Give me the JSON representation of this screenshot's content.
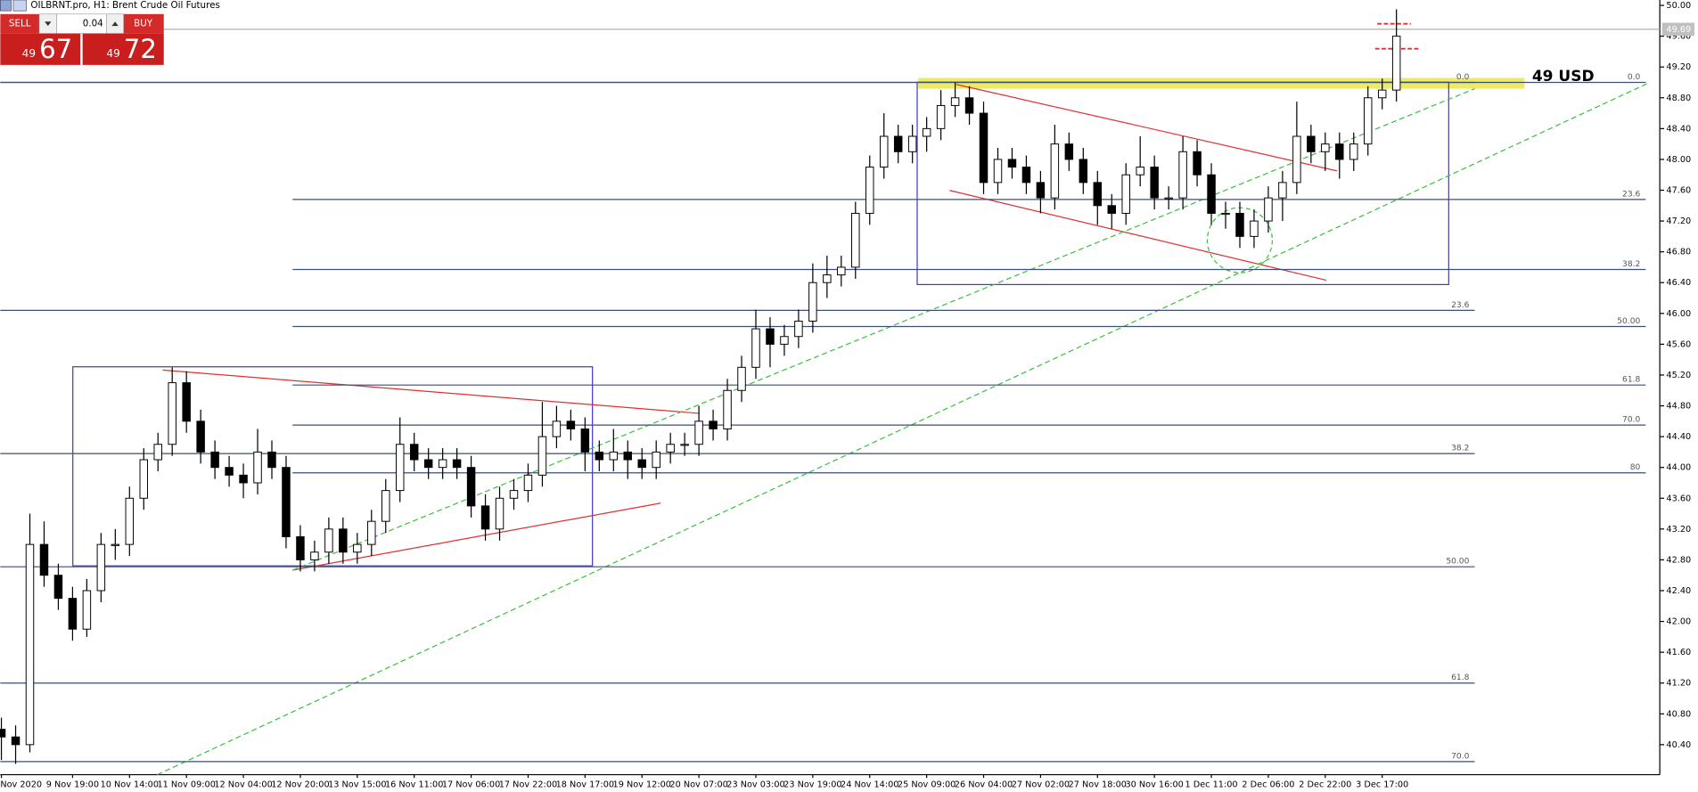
{
  "header": {
    "title": "OILBRNT.pro, H1:  Brent Crude Oil Futures"
  },
  "trade_panel": {
    "sell_label": "SELL",
    "buy_label": "BUY",
    "volume": "0.04",
    "sell_small": "49",
    "sell_big": "67",
    "buy_small": "49",
    "buy_big": "72"
  },
  "annotation": "49 USD",
  "chart_data": {
    "type": "candlestick",
    "up_color": "#ffffff",
    "down_color": "#000000",
    "ylim": [
      40.01,
      50.07
    ],
    "yticks": [
      {
        "value": 50.0,
        "label": "50.00"
      },
      {
        "value": 49.6,
        "label": "49.60"
      },
      {
        "value": 49.2,
        "label": "49.20"
      },
      {
        "value": 48.8,
        "label": "48.80"
      },
      {
        "value": 48.4,
        "label": "48.40"
      },
      {
        "value": 48.0,
        "label": "48.00"
      },
      {
        "value": 47.6,
        "label": "47.60"
      },
      {
        "value": 47.2,
        "label": "47.20"
      },
      {
        "value": 46.8,
        "label": "46.80"
      },
      {
        "value": 46.4,
        "label": "46.40"
      },
      {
        "value": 46.0,
        "label": "46.00"
      },
      {
        "value": 45.6,
        "label": "45.60"
      },
      {
        "value": 45.2,
        "label": "45.20"
      },
      {
        "value": 44.8,
        "label": "44.80"
      },
      {
        "value": 44.4,
        "label": "44.40"
      },
      {
        "value": 44.0,
        "label": "44.00"
      },
      {
        "value": 43.6,
        "label": "43.60"
      },
      {
        "value": 43.2,
        "label": "43.20"
      },
      {
        "value": 42.8,
        "label": "42.80"
      },
      {
        "value": 42.4,
        "label": "42.40"
      },
      {
        "value": 42.0,
        "label": "42.00"
      },
      {
        "value": 41.6,
        "label": "41.60"
      },
      {
        "value": 41.2,
        "label": "41.20"
      },
      {
        "value": 40.8,
        "label": "40.80"
      },
      {
        "value": 40.4,
        "label": "40.40"
      }
    ],
    "current_price": 49.69,
    "categories": [
      "Nov 2020",
      null,
      null,
      null,
      null,
      "9 Nov 19:00",
      null,
      null,
      null,
      "10 Nov 14:00",
      null,
      null,
      null,
      "11 Nov 09:00",
      null,
      null,
      null,
      "12 Nov 04:00",
      null,
      null,
      null,
      "12 Nov 20:00",
      null,
      null,
      null,
      "13 Nov 15:00",
      null,
      null,
      null,
      "16 Nov 11:00",
      null,
      null,
      null,
      "17 Nov 06:00",
      null,
      null,
      null,
      "17 Nov 22:00",
      null,
      null,
      null,
      "18 Nov 17:00",
      null,
      null,
      null,
      "19 Nov 12:00",
      null,
      null,
      null,
      "20 Nov 07:00",
      null,
      null,
      null,
      "23 Nov 03:00",
      null,
      null,
      null,
      "23 Nov 19:00",
      null,
      null,
      null,
      "24 Nov 14:00",
      null,
      null,
      null,
      "25 Nov 09:00",
      null,
      null,
      null,
      "26 Nov 04:00",
      null,
      null,
      null,
      "27 Nov 02:00",
      null,
      null,
      null,
      "27 Nov 18:00",
      null,
      null,
      null,
      "30 Nov 16:00",
      null,
      null,
      null,
      "1 Dec 11:00",
      null,
      null,
      null,
      "2 Dec 06:00",
      null,
      null,
      null,
      "2 Dec 22:00",
      null,
      null,
      null,
      "3 Dec 17:00",
      null
    ],
    "open": [
      40.6,
      40.5,
      40.4,
      43.0,
      42.6,
      42.3,
      41.9,
      42.4,
      43.0,
      43.0,
      43.6,
      44.1,
      44.3,
      45.1,
      44.6,
      44.2,
      44.0,
      43.9,
      43.8,
      44.2,
      44.0,
      43.1,
      42.8,
      42.9,
      43.2,
      42.9,
      43.0,
      43.3,
      43.7,
      44.3,
      44.1,
      44.0,
      44.1,
      44.0,
      43.5,
      43.2,
      43.6,
      43.7,
      43.9,
      44.4,
      44.6,
      44.5,
      44.2,
      44.1,
      44.2,
      44.1,
      44.0,
      44.2,
      44.3,
      44.3,
      44.6,
      44.5,
      45.0,
      45.3,
      45.8,
      45.6,
      45.7,
      45.9,
      46.4,
      46.5,
      46.6,
      47.3,
      47.9,
      48.3,
      48.1,
      48.3,
      48.4,
      48.7,
      48.8,
      48.6,
      47.7,
      48.0,
      47.9,
      47.7,
      47.5,
      48.2,
      48.0,
      47.7,
      47.4,
      47.3,
      47.8,
      47.9,
      47.5,
      47.5,
      48.1,
      47.8,
      47.3,
      47.3,
      47.0,
      47.2,
      47.5,
      47.7,
      48.3,
      48.1,
      48.2,
      48.0,
      48.2,
      48.8,
      48.9
    ],
    "high": [
      40.75,
      40.65,
      43.4,
      43.3,
      42.75,
      42.45,
      42.55,
      43.15,
      43.2,
      43.75,
      44.25,
      44.45,
      45.3,
      45.25,
      44.75,
      44.35,
      44.15,
      44.05,
      44.5,
      44.35,
      44.15,
      43.25,
      43.05,
      43.35,
      43.35,
      43.15,
      43.45,
      43.85,
      44.65,
      44.45,
      44.25,
      44.25,
      44.25,
      44.15,
      43.65,
      43.75,
      43.85,
      44.05,
      44.85,
      44.8,
      44.75,
      44.65,
      44.35,
      44.5,
      44.35,
      44.25,
      44.35,
      44.45,
      44.45,
      44.8,
      44.75,
      45.15,
      45.45,
      46.05,
      45.95,
      45.85,
      46.05,
      46.65,
      46.75,
      46.75,
      47.45,
      48.05,
      48.6,
      48.45,
      48.45,
      48.55,
      48.9,
      49.0,
      48.95,
      48.75,
      48.15,
      48.15,
      48.05,
      47.85,
      48.45,
      48.35,
      48.15,
      47.85,
      47.55,
      47.95,
      48.3,
      48.05,
      47.65,
      48.3,
      48.25,
      47.95,
      47.45,
      47.45,
      47.35,
      47.65,
      47.85,
      48.75,
      48.45,
      48.35,
      48.35,
      48.35,
      48.95,
      49.05,
      49.95
    ],
    "low": [
      40.2,
      40.15,
      40.3,
      42.45,
      42.15,
      41.75,
      41.8,
      42.25,
      42.8,
      42.85,
      43.45,
      43.95,
      44.15,
      44.45,
      44.05,
      43.85,
      43.75,
      43.6,
      43.65,
      43.85,
      42.95,
      42.65,
      42.65,
      42.75,
      42.75,
      42.75,
      42.85,
      43.15,
      43.55,
      43.95,
      43.85,
      43.85,
      43.85,
      43.35,
      43.05,
      43.05,
      43.45,
      43.55,
      43.75,
      44.25,
      44.35,
      43.95,
      43.95,
      43.95,
      43.85,
      43.85,
      43.85,
      44.05,
      44.15,
      44.15,
      44.35,
      44.35,
      44.85,
      45.15,
      45.3,
      45.45,
      45.55,
      45.75,
      46.2,
      46.35,
      46.45,
      47.15,
      47.75,
      47.95,
      47.95,
      48.1,
      48.25,
      48.55,
      48.45,
      47.55,
      47.55,
      47.75,
      47.55,
      47.3,
      47.35,
      47.85,
      47.55,
      47.15,
      47.1,
      47.15,
      47.65,
      47.35,
      47.35,
      47.35,
      47.65,
      47.15,
      47.1,
      46.85,
      46.85,
      47.05,
      47.2,
      47.55,
      47.95,
      47.85,
      47.75,
      47.85,
      48.05,
      48.65,
      48.75
    ],
    "close": [
      40.5,
      40.4,
      43.0,
      42.6,
      42.3,
      41.9,
      42.4,
      43.0,
      43.0,
      43.6,
      44.1,
      44.3,
      45.1,
      44.6,
      44.2,
      44.0,
      43.9,
      43.8,
      44.2,
      44.0,
      43.1,
      42.8,
      42.9,
      43.2,
      42.9,
      43.0,
      43.3,
      43.7,
      44.3,
      44.1,
      44.0,
      44.1,
      44.0,
      43.5,
      43.2,
      43.6,
      43.7,
      43.9,
      44.4,
      44.6,
      44.5,
      44.2,
      44.1,
      44.2,
      44.1,
      44.0,
      44.2,
      44.3,
      44.3,
      44.6,
      44.5,
      45.0,
      45.3,
      45.8,
      45.6,
      45.7,
      45.9,
      46.4,
      46.5,
      46.6,
      47.3,
      47.9,
      48.3,
      48.1,
      48.3,
      48.4,
      48.7,
      48.8,
      48.6,
      47.7,
      48.0,
      47.9,
      47.7,
      47.5,
      48.2,
      48.0,
      47.7,
      47.4,
      47.3,
      47.8,
      47.9,
      47.5,
      47.5,
      48.1,
      47.8,
      47.3,
      47.3,
      47.0,
      47.2,
      47.5,
      47.7,
      48.3,
      48.1,
      48.2,
      48.0,
      48.2,
      48.8,
      48.9,
      49.6
    ],
    "fibonacci": [
      {
        "levels": [
          {
            "price": 49.0,
            "label": "0.0"
          },
          {
            "price": 47.48,
            "label": "23.6"
          },
          {
            "price": 46.57,
            "label": "38.2"
          },
          {
            "price": 45.83,
            "label": "50.00"
          },
          {
            "price": 45.07,
            "label": "61.8"
          },
          {
            "price": 44.55,
            "label": "70.0"
          },
          {
            "price": 43.93,
            "label": "80"
          }
        ]
      },
      {
        "levels": [
          {
            "price": 49.0,
            "label": "0.0"
          },
          {
            "price": 46.04,
            "label": "23.6"
          },
          {
            "price": 44.18,
            "label": "38.2"
          },
          {
            "price": 42.71,
            "label": "50.00"
          },
          {
            "price": 41.2,
            "label": "61.8"
          },
          {
            "price": 40.18,
            "label": "70.0"
          }
        ]
      }
    ]
  }
}
